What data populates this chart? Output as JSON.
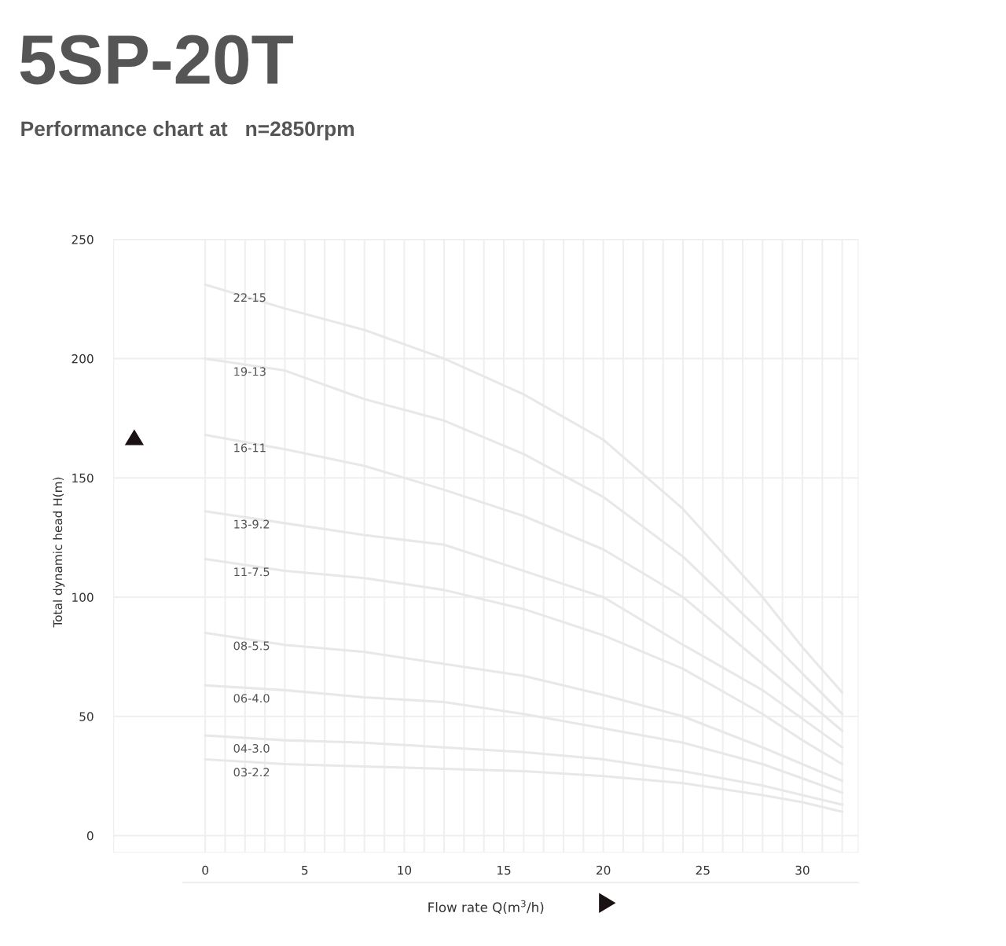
{
  "chart_data": {
    "type": "line",
    "title": "5SP-20T",
    "subtitle": "Performance chart at   n=2850rpm",
    "xlabel": "Flow rate Q(m$^{3}$/h)",
    "ylabel": "Total dynamic head H(m)",
    "x": [
      0,
      4,
      8,
      12,
      16,
      20,
      24,
      28,
      30,
      32
    ],
    "series": [
      {
        "name": "22-15",
        "color": "#e8e8e8",
        "values": [
          231,
          221,
          212,
          200,
          185,
          166,
          137,
          100,
          79,
          60
        ]
      },
      {
        "name": "19-13",
        "color": "#e8e8e8",
        "values": [
          200,
          195,
          183,
          174,
          160,
          142,
          117,
          85,
          68,
          51
        ]
      },
      {
        "name": "16-11",
        "color": "#e8e8e8",
        "values": [
          168,
          162,
          155,
          145,
          134,
          120,
          100,
          72,
          58,
          44
        ]
      },
      {
        "name": "13-9.2",
        "color": "#e8e8e8",
        "values": [
          136,
          131,
          126,
          122,
          111,
          100,
          80,
          61,
          49,
          37
        ]
      },
      {
        "name": "11-7.5",
        "color": "#e8e8e8",
        "values": [
          116,
          111,
          108,
          103,
          95,
          84,
          70,
          51,
          40,
          30
        ]
      },
      {
        "name": "08-5.5",
        "color": "#e8e8e8",
        "values": [
          85,
          80,
          77,
          72,
          67,
          59,
          50,
          37,
          30,
          23
        ]
      },
      {
        "name": "06-4.0",
        "color": "#e8e8e8",
        "values": [
          63,
          61,
          58,
          56,
          51,
          45,
          39,
          30,
          24,
          18
        ]
      },
      {
        "name": "04-3.0",
        "color": "#e8e8e8",
        "values": [
          42,
          40,
          39,
          37,
          35,
          32,
          27,
          21,
          17,
          13
        ]
      },
      {
        "name": "03-2.2",
        "color": "#e8e8e8",
        "values": [
          32,
          30,
          29,
          28,
          27,
          25,
          22,
          17,
          14,
          10
        ]
      }
    ],
    "xlim": [
      -4.6,
      32.8
    ],
    "ylim": [
      -7,
      250
    ],
    "xticks": [
      0,
      {
        "value": 1,
        "label": null
      },
      {
        "value": 2,
        "label": null
      },
      {
        "value": 3,
        "label": null
      },
      {
        "value": 4,
        "label": null
      },
      5,
      {
        "value": 6,
        "label": null
      },
      {
        "value": 7,
        "label": null
      },
      {
        "value": 8,
        "label": null
      },
      {
        "value": 9,
        "label": null
      },
      10,
      {
        "value": 11,
        "label": null
      },
      {
        "value": 12,
        "label": null
      },
      {
        "value": 13,
        "label": null
      },
      {
        "value": 14,
        "label": null
      },
      15,
      {
        "value": 16,
        "label": null
      },
      {
        "value": 17,
        "label": null
      },
      {
        "value": 18,
        "label": null
      },
      {
        "value": 19,
        "label": null
      },
      20,
      {
        "value": 21,
        "label": null
      },
      {
        "value": 22,
        "label": null
      },
      {
        "value": 23,
        "label": null
      },
      {
        "value": 24,
        "label": null
      },
      25,
      {
        "value": 26,
        "label": null
      },
      {
        "value": 27,
        "label": null
      },
      {
        "value": 28,
        "label": null
      },
      {
        "value": 29,
        "label": null
      },
      30,
      {
        "value": 31,
        "label": null
      },
      {
        "value": 32,
        "label": null
      }
    ],
    "yticks": [
      0,
      50,
      100,
      150,
      200,
      250
    ],
    "grid": true,
    "legend": false,
    "marker": "none",
    "line_style": "solid"
  }
}
